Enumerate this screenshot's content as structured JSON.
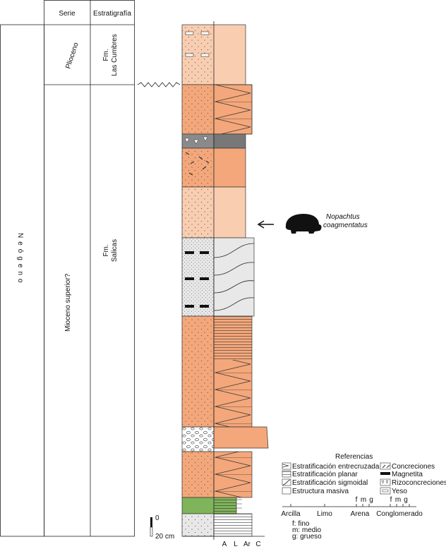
{
  "header": {
    "serie": "Serie",
    "estratigrafia": "Estratigrafía"
  },
  "era": "Neógeno",
  "series": [
    "Plioceno",
    "Mioceno superior?"
  ],
  "formations": [
    {
      "lines": [
        "Fm.",
        "Las Cumbres"
      ]
    },
    {
      "lines": [
        "Fm.",
        "Salicas"
      ]
    }
  ],
  "fossil": {
    "lines": [
      "Nopachtus",
      "coagmentatus"
    ]
  },
  "scale": {
    "zero": "0",
    "length": "20 cm"
  },
  "grain_axis": [
    "A",
    "L",
    "Ar",
    "C"
  ],
  "legend": {
    "title": "Referencias",
    "items": [
      "Estratificación entrecruzada",
      "Estratificación planar",
      "Estratificación sigmoidal",
      "Estructura masiva",
      "Concreciones",
      "Magnetita",
      "Rizoconcreciones",
      "Yeso"
    ]
  },
  "grain_scale": {
    "classes": [
      "Arcilla",
      "Limo",
      "Arena",
      "Conglomerado"
    ],
    "sub_arena": [
      "f",
      "m",
      "g"
    ],
    "sub_conglomerado": [
      "f",
      "m",
      "g"
    ],
    "notes": [
      "f: fino",
      "m: medio",
      "g: grueso"
    ]
  }
}
